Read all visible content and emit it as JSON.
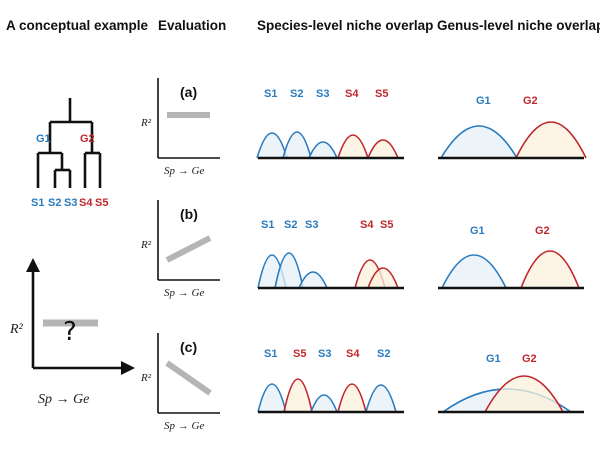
{
  "headers": {
    "col1": "A conceptual example",
    "col2": "Evaluation",
    "col3": "Species-level niche overlap",
    "col4": "Genus-level niche overlap"
  },
  "tree": {
    "genus_labels": [
      "G1",
      "G2"
    ],
    "species_labels": [
      "S1",
      "S2",
      "S3",
      "S4",
      "S5"
    ]
  },
  "axes": {
    "y_label": "R²",
    "x_label": "Sp → Ge",
    "unknown_mark": "?"
  },
  "panels": [
    {
      "id": "a",
      "label": "(a)",
      "trend": "flat",
      "species_labels": [
        "S1",
        "S2",
        "S3",
        "S4",
        "S5"
      ],
      "genus_labels": [
        "G1",
        "G2"
      ]
    },
    {
      "id": "b",
      "label": "(b)",
      "trend": "increasing",
      "species_labels": [
        "S1",
        "S2",
        "S3",
        "S4",
        "S5"
      ],
      "genus_labels": [
        "G1",
        "G2"
      ]
    },
    {
      "id": "c",
      "label": "(c)",
      "trend": "decreasing",
      "species_labels": [
        "S1",
        "S5",
        "S3",
        "S4",
        "S2"
      ],
      "genus_labels": [
        "G1",
        "G2"
      ]
    }
  ],
  "colors": {
    "genus1": "#2a7bbf",
    "genus2": "#c0272d",
    "genus1_fill": "#e6f0f8",
    "genus2_fill": "#fbf1dc",
    "trend_line": "#b5b5b5",
    "axis": "#111111"
  }
}
